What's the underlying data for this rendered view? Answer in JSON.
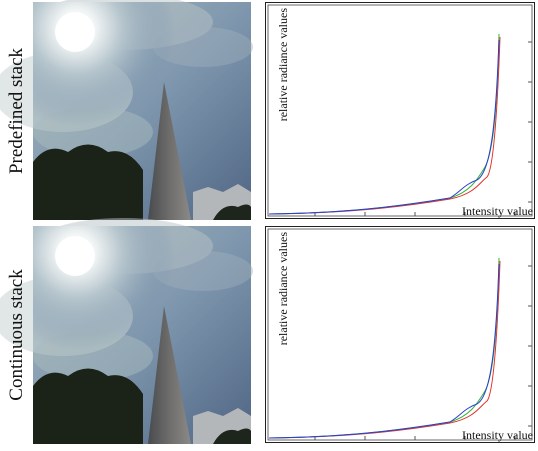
{
  "rows": [
    {
      "label": "Predefined stack",
      "plot": {
        "y_label": "relative radiance values",
        "x_label": "Intensity value"
      }
    },
    {
      "label": "Continuous stack",
      "plot": {
        "y_label": "relative radiance values",
        "x_label": "Intensity value"
      }
    }
  ]
}
